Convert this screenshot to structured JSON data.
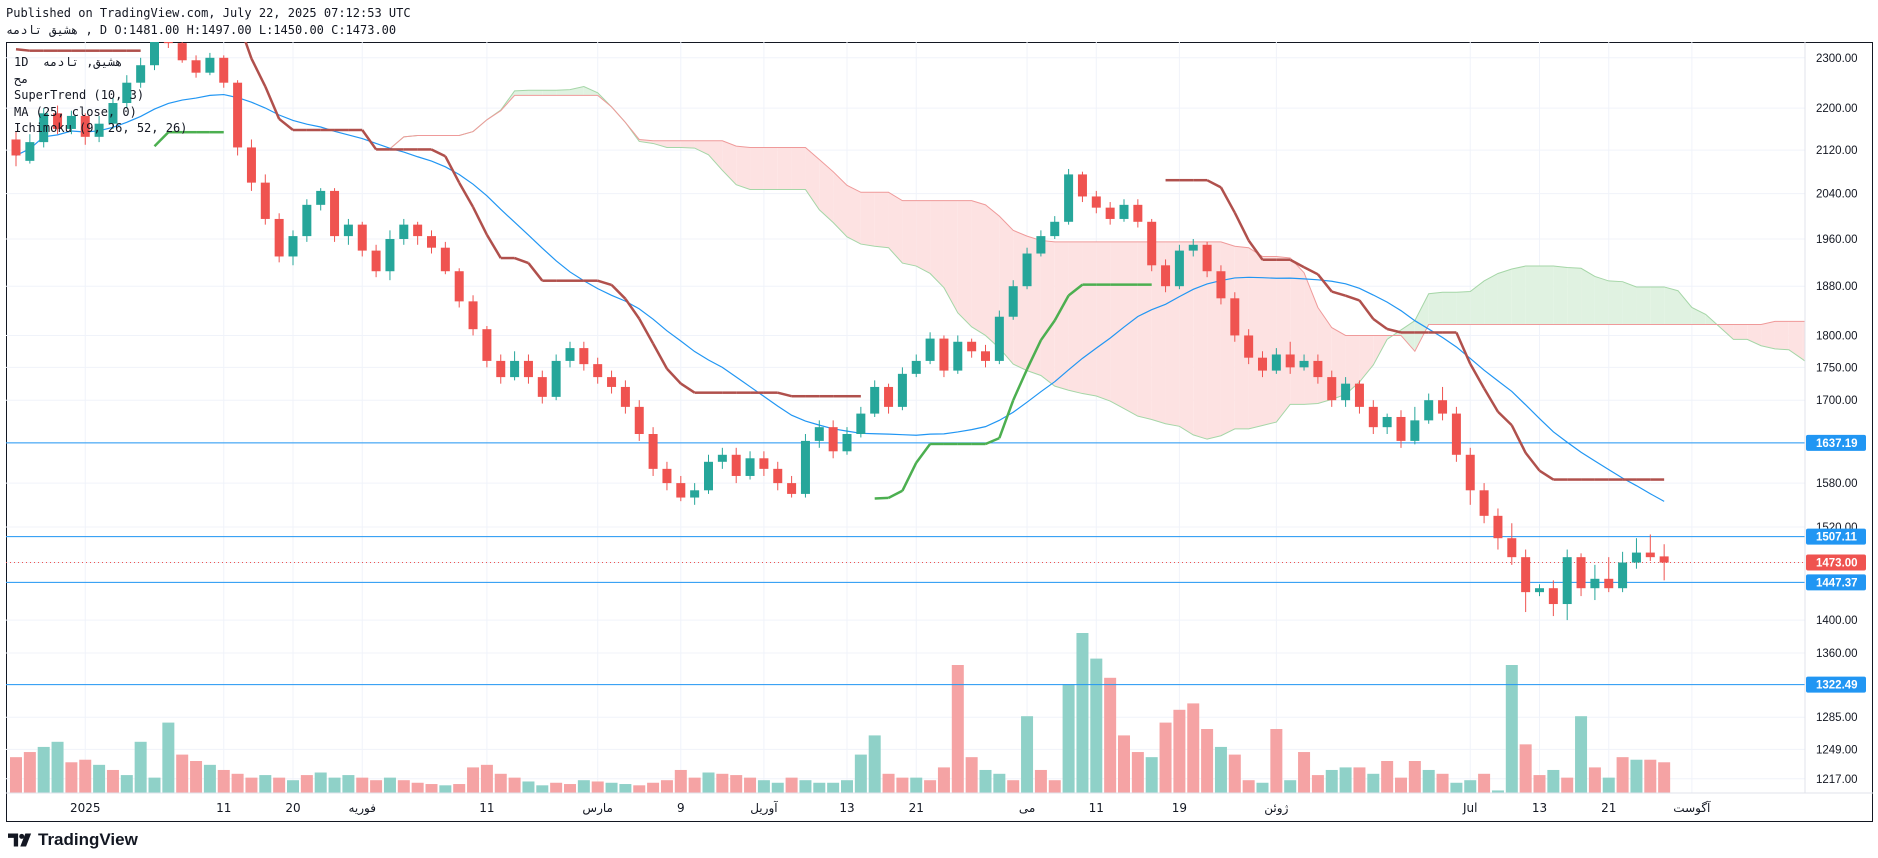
{
  "header": {
    "published": "Published on TradingView.com, July 22, 2025 07:12:53 UTC",
    "ohlc_line": "هشیق  تادمه  , D O:1481.00 H:1497.00 L:1450.00 C:1473.00"
  },
  "legend": {
    "line1": "1D  هشیق, تادمه",
    "line2": "مح",
    "line3": "SuperTrend (10, 3)",
    "line4": "MA (25, close, 0)",
    "line5": "Ichimoku (9, 26, 52, 26)"
  },
  "logo": {
    "text": "TradingView"
  },
  "colors": {
    "up": "#26a69a",
    "down": "#ef5350",
    "vol_up": "#8fd1c8",
    "vol_down": "#f5a3a4",
    "ma": "#2196f3",
    "st_down": "#b0504c",
    "st_up": "#4caf50",
    "cloud_bull": "#e0f2e1",
    "cloud_bear": "#fde2e2",
    "level_line": "#2196f3"
  },
  "chart_data": {
    "type": "candlestick",
    "y_scale": "log",
    "ylim": [
      1205,
      2320
    ],
    "y_ticks": [
      "2300.00",
      "2200.00",
      "2120.00",
      "2040.00",
      "1960.00",
      "1880.00",
      "1800.00",
      "1750.00",
      "1700.00",
      "1637.19",
      "1580.00",
      "1520.00",
      "1507.11",
      "1473.00",
      "1447.37",
      "1400.00",
      "1360.00",
      "1322.49",
      "1285.00",
      "1249.00",
      "1217.00"
    ],
    "x_tick_labels": [
      {
        "i": 5,
        "label": "2025"
      },
      {
        "i": 15,
        "label": "11"
      },
      {
        "i": 20,
        "label": "20"
      },
      {
        "i": 25,
        "label": "فوریه"
      },
      {
        "i": 34,
        "label": "11"
      },
      {
        "i": 42,
        "label": "مارس"
      },
      {
        "i": 48,
        "label": "9"
      },
      {
        "i": 54,
        "label": "آوریل"
      },
      {
        "i": 60,
        "label": "13"
      },
      {
        "i": 65,
        "label": "21"
      },
      {
        "i": 73,
        "label": "می"
      },
      {
        "i": 78,
        "label": "11"
      },
      {
        "i": 84,
        "label": "19"
      },
      {
        "i": 91,
        "label": "ژوئن"
      },
      {
        "i": 105,
        "label": "Jul"
      },
      {
        "i": 110,
        "label": "13"
      },
      {
        "i": 115,
        "label": "21"
      },
      {
        "i": 121,
        "label": "آگوست"
      }
    ],
    "horizontal_levels": [
      1637.19,
      1507.11,
      1447.37,
      1322.49
    ],
    "last_price": 1473.0,
    "candles": [
      [
        2140,
        2110,
        2155,
        2090
      ],
      [
        2100,
        2135,
        2150,
        2095
      ],
      [
        2135,
        2190,
        2200,
        2125
      ],
      [
        2190,
        2160,
        2205,
        2150
      ],
      [
        2160,
        2185,
        2195,
        2150
      ],
      [
        2185,
        2145,
        2190,
        2130
      ],
      [
        2145,
        2170,
        2185,
        2135
      ],
      [
        2170,
        2210,
        2220,
        2160
      ],
      [
        2210,
        2250,
        2265,
        2200
      ],
      [
        2250,
        2285,
        2300,
        2240
      ],
      [
        2285,
        2340,
        2360,
        2275
      ],
      [
        2340,
        2330,
        2345,
        2320
      ],
      [
        2330,
        2295,
        2340,
        2290
      ],
      [
        2295,
        2270,
        2305,
        2260
      ],
      [
        2270,
        2300,
        2310,
        2265
      ],
      [
        2300,
        2250,
        2305,
        2240
      ],
      [
        2250,
        2125,
        2255,
        2110
      ],
      [
        2125,
        2060,
        2140,
        2045
      ],
      [
        2060,
        1995,
        2075,
        1985
      ],
      [
        1995,
        1930,
        2005,
        1920
      ],
      [
        1930,
        1965,
        1975,
        1915
      ],
      [
        1965,
        2020,
        2030,
        1955
      ],
      [
        2020,
        2045,
        2050,
        2010
      ],
      [
        2045,
        1965,
        2050,
        1955
      ],
      [
        1965,
        1985,
        1995,
        1950
      ],
      [
        1985,
        1940,
        1990,
        1930
      ],
      [
        1940,
        1905,
        1950,
        1895
      ],
      [
        1905,
        1960,
        1975,
        1890
      ],
      [
        1960,
        1985,
        1995,
        1950
      ],
      [
        1985,
        1965,
        1990,
        1950
      ],
      [
        1965,
        1945,
        1975,
        1935
      ],
      [
        1945,
        1905,
        1955,
        1900
      ],
      [
        1905,
        1855,
        1910,
        1845
      ],
      [
        1855,
        1810,
        1865,
        1800
      ],
      [
        1810,
        1760,
        1815,
        1750
      ],
      [
        1760,
        1735,
        1770,
        1725
      ],
      [
        1735,
        1760,
        1775,
        1730
      ],
      [
        1760,
        1735,
        1770,
        1725
      ],
      [
        1735,
        1705,
        1745,
        1695
      ],
      [
        1705,
        1760,
        1770,
        1700
      ],
      [
        1760,
        1780,
        1790,
        1750
      ],
      [
        1780,
        1755,
        1790,
        1745
      ],
      [
        1755,
        1735,
        1765,
        1725
      ],
      [
        1735,
        1720,
        1745,
        1710
      ],
      [
        1720,
        1690,
        1730,
        1680
      ],
      [
        1690,
        1650,
        1700,
        1640
      ],
      [
        1650,
        1600,
        1660,
        1590
      ],
      [
        1600,
        1580,
        1610,
        1570
      ],
      [
        1580,
        1560,
        1590,
        1555
      ],
      [
        1560,
        1570,
        1580,
        1550
      ],
      [
        1570,
        1610,
        1620,
        1565
      ],
      [
        1610,
        1620,
        1630,
        1600
      ],
      [
        1620,
        1590,
        1630,
        1580
      ],
      [
        1590,
        1615,
        1625,
        1585
      ],
      [
        1615,
        1600,
        1625,
        1590
      ],
      [
        1600,
        1580,
        1610,
        1570
      ],
      [
        1580,
        1565,
        1590,
        1560
      ],
      [
        1565,
        1640,
        1650,
        1560
      ],
      [
        1640,
        1660,
        1670,
        1630
      ],
      [
        1660,
        1625,
        1670,
        1615
      ],
      [
        1625,
        1650,
        1660,
        1620
      ],
      [
        1650,
        1680,
        1690,
        1645
      ],
      [
        1680,
        1720,
        1730,
        1675
      ],
      [
        1720,
        1690,
        1725,
        1680
      ],
      [
        1690,
        1740,
        1750,
        1685
      ],
      [
        1740,
        1760,
        1770,
        1735
      ],
      [
        1760,
        1795,
        1805,
        1755
      ],
      [
        1795,
        1745,
        1800,
        1735
      ],
      [
        1745,
        1790,
        1800,
        1740
      ],
      [
        1790,
        1775,
        1795,
        1765
      ],
      [
        1775,
        1760,
        1785,
        1750
      ],
      [
        1760,
        1830,
        1840,
        1755
      ],
      [
        1830,
        1880,
        1890,
        1825
      ],
      [
        1880,
        1935,
        1945,
        1875
      ],
      [
        1935,
        1965,
        1975,
        1930
      ],
      [
        1965,
        1990,
        2000,
        1960
      ],
      [
        1990,
        2075,
        2085,
        1985
      ],
      [
        2075,
        2035,
        2080,
        2025
      ],
      [
        2035,
        2015,
        2045,
        2005
      ],
      [
        2015,
        1995,
        2025,
        1985
      ],
      [
        1995,
        2020,
        2030,
        1990
      ],
      [
        2020,
        1990,
        2030,
        1980
      ],
      [
        1990,
        1915,
        1995,
        1905
      ],
      [
        1915,
        1880,
        1925,
        1870
      ],
      [
        1880,
        1940,
        1950,
        1875
      ],
      [
        1940,
        1950,
        1960,
        1930
      ],
      [
        1950,
        1905,
        1955,
        1895
      ],
      [
        1905,
        1860,
        1915,
        1850
      ],
      [
        1860,
        1800,
        1870,
        1790
      ],
      [
        1800,
        1765,
        1810,
        1755
      ],
      [
        1765,
        1745,
        1775,
        1735
      ],
      [
        1745,
        1770,
        1780,
        1740
      ],
      [
        1770,
        1750,
        1790,
        1740
      ],
      [
        1750,
        1760,
        1770,
        1745
      ],
      [
        1760,
        1735,
        1770,
        1725
      ],
      [
        1735,
        1700,
        1745,
        1690
      ],
      [
        1700,
        1725,
        1735,
        1690
      ],
      [
        1725,
        1690,
        1730,
        1680
      ],
      [
        1690,
        1660,
        1700,
        1650
      ],
      [
        1660,
        1675,
        1680,
        1650
      ],
      [
        1675,
        1640,
        1685,
        1630
      ],
      [
        1640,
        1670,
        1690,
        1635
      ],
      [
        1670,
        1700,
        1710,
        1665
      ],
      [
        1700,
        1680,
        1720,
        1670
      ],
      [
        1680,
        1620,
        1690,
        1610
      ],
      [
        1620,
        1570,
        1630,
        1550
      ],
      [
        1570,
        1535,
        1580,
        1525
      ],
      [
        1535,
        1505,
        1545,
        1490
      ],
      [
        1505,
        1480,
        1525,
        1470
      ],
      [
        1480,
        1435,
        1490,
        1410
      ],
      [
        1435,
        1440,
        1445,
        1430
      ],
      [
        1440,
        1420,
        1450,
        1405
      ],
      [
        1420,
        1480,
        1490,
        1400
      ],
      [
        1480,
        1440,
        1485,
        1430
      ],
      [
        1440,
        1452,
        1470,
        1425
      ],
      [
        1452,
        1440,
        1480,
        1435
      ],
      [
        1440,
        1473,
        1487,
        1435
      ],
      [
        1473,
        1486,
        1505,
        1465
      ],
      [
        1486,
        1480,
        1510,
        1475
      ],
      [
        1481,
        1473,
        1497,
        1450
      ]
    ],
    "volume": [
      {
        "v": 28,
        "up": false
      },
      {
        "v": 32,
        "up": false
      },
      {
        "v": 36,
        "up": true
      },
      {
        "v": 40,
        "up": true
      },
      {
        "v": 24,
        "up": false
      },
      {
        "v": 26,
        "up": false
      },
      {
        "v": 22,
        "up": true
      },
      {
        "v": 18,
        "up": false
      },
      {
        "v": 14,
        "up": true
      },
      {
        "v": 40,
        "up": true
      },
      {
        "v": 12,
        "up": true
      },
      {
        "v": 55,
        "up": true
      },
      {
        "v": 30,
        "up": false
      },
      {
        "v": 25,
        "up": false
      },
      {
        "v": 22,
        "up": true
      },
      {
        "v": 18,
        "up": false
      },
      {
        "v": 15,
        "up": false
      },
      {
        "v": 12,
        "up": false
      },
      {
        "v": 14,
        "up": true
      },
      {
        "v": 12,
        "up": false
      },
      {
        "v": 10,
        "up": true
      },
      {
        "v": 14,
        "up": false
      },
      {
        "v": 16,
        "up": true
      },
      {
        "v": 12,
        "up": true
      },
      {
        "v": 14,
        "up": true
      },
      {
        "v": 12,
        "up": false
      },
      {
        "v": 10,
        "up": false
      },
      {
        "v": 12,
        "up": true
      },
      {
        "v": 10,
        "up": false
      },
      {
        "v": 8,
        "up": false
      },
      {
        "v": 7,
        "up": false
      },
      {
        "v": 6,
        "up": true
      },
      {
        "v": 7,
        "up": false
      },
      {
        "v": 20,
        "up": false
      },
      {
        "v": 22,
        "up": false
      },
      {
        "v": 15,
        "up": false
      },
      {
        "v": 12,
        "up": false
      },
      {
        "v": 9,
        "up": true
      },
      {
        "v": 6,
        "up": true
      },
      {
        "v": 8,
        "up": false
      },
      {
        "v": 7,
        "up": false
      },
      {
        "v": 10,
        "up": true
      },
      {
        "v": 9,
        "up": false
      },
      {
        "v": 8,
        "up": true
      },
      {
        "v": 7,
        "up": true
      },
      {
        "v": 6,
        "up": false
      },
      {
        "v": 8,
        "up": false
      },
      {
        "v": 10,
        "up": false
      },
      {
        "v": 18,
        "up": false
      },
      {
        "v": 12,
        "up": false
      },
      {
        "v": 16,
        "up": true
      },
      {
        "v": 15,
        "up": false
      },
      {
        "v": 14,
        "up": false
      },
      {
        "v": 12,
        "up": false
      },
      {
        "v": 10,
        "up": true
      },
      {
        "v": 8,
        "up": true
      },
      {
        "v": 12,
        "up": false
      },
      {
        "v": 10,
        "up": true
      },
      {
        "v": 8,
        "up": true
      },
      {
        "v": 8,
        "up": true
      },
      {
        "v": 10,
        "up": true
      },
      {
        "v": 30,
        "up": true
      },
      {
        "v": 45,
        "up": true
      },
      {
        "v": 15,
        "up": false
      },
      {
        "v": 12,
        "up": false
      },
      {
        "v": 12,
        "up": true
      },
      {
        "v": 10,
        "up": false
      },
      {
        "v": 20,
        "up": false
      },
      {
        "v": 100,
        "up": false
      },
      {
        "v": 28,
        "up": false
      },
      {
        "v": 18,
        "up": true
      },
      {
        "v": 15,
        "up": true
      },
      {
        "v": 10,
        "up": false
      },
      {
        "v": 60,
        "up": true
      },
      {
        "v": 18,
        "up": false
      },
      {
        "v": 10,
        "up": false
      },
      {
        "v": 85,
        "up": true
      },
      {
        "v": 125,
        "up": true
      },
      {
        "v": 105,
        "up": true
      },
      {
        "v": 90,
        "up": false
      },
      {
        "v": 45,
        "up": false
      },
      {
        "v": 32,
        "up": false
      },
      {
        "v": 28,
        "up": true
      },
      {
        "v": 55,
        "up": false
      },
      {
        "v": 65,
        "up": false
      },
      {
        "v": 70,
        "up": false
      },
      {
        "v": 50,
        "up": false
      },
      {
        "v": 36,
        "up": true
      },
      {
        "v": 30,
        "up": false
      },
      {
        "v": 10,
        "up": false
      },
      {
        "v": 8,
        "up": true
      },
      {
        "v": 50,
        "up": false
      },
      {
        "v": 10,
        "up": true
      },
      {
        "v": 32,
        "up": false
      },
      {
        "v": 14,
        "up": false
      },
      {
        "v": 18,
        "up": true
      },
      {
        "v": 20,
        "up": true
      },
      {
        "v": 20,
        "up": false
      },
      {
        "v": 15,
        "up": true
      },
      {
        "v": 25,
        "up": false
      },
      {
        "v": 12,
        "up": false
      },
      {
        "v": 25,
        "up": false
      },
      {
        "v": 18,
        "up": true
      },
      {
        "v": 15,
        "up": false
      },
      {
        "v": 8,
        "up": true
      },
      {
        "v": 10,
        "up": true
      },
      {
        "v": 15,
        "up": false
      },
      {
        "v": 2,
        "up": true
      },
      {
        "v": 100,
        "up": true
      },
      {
        "v": 38,
        "up": false
      },
      {
        "v": 14,
        "up": false
      },
      {
        "v": 18,
        "up": true
      },
      {
        "v": 12,
        "up": false
      },
      {
        "v": 60,
        "up": true
      },
      {
        "v": 20,
        "up": false
      },
      {
        "v": 12,
        "up": true
      },
      {
        "v": 28,
        "up": false
      },
      {
        "v": 26,
        "up": true
      },
      {
        "v": 26,
        "up": false
      },
      {
        "v": 24,
        "up": false
      }
    ]
  }
}
